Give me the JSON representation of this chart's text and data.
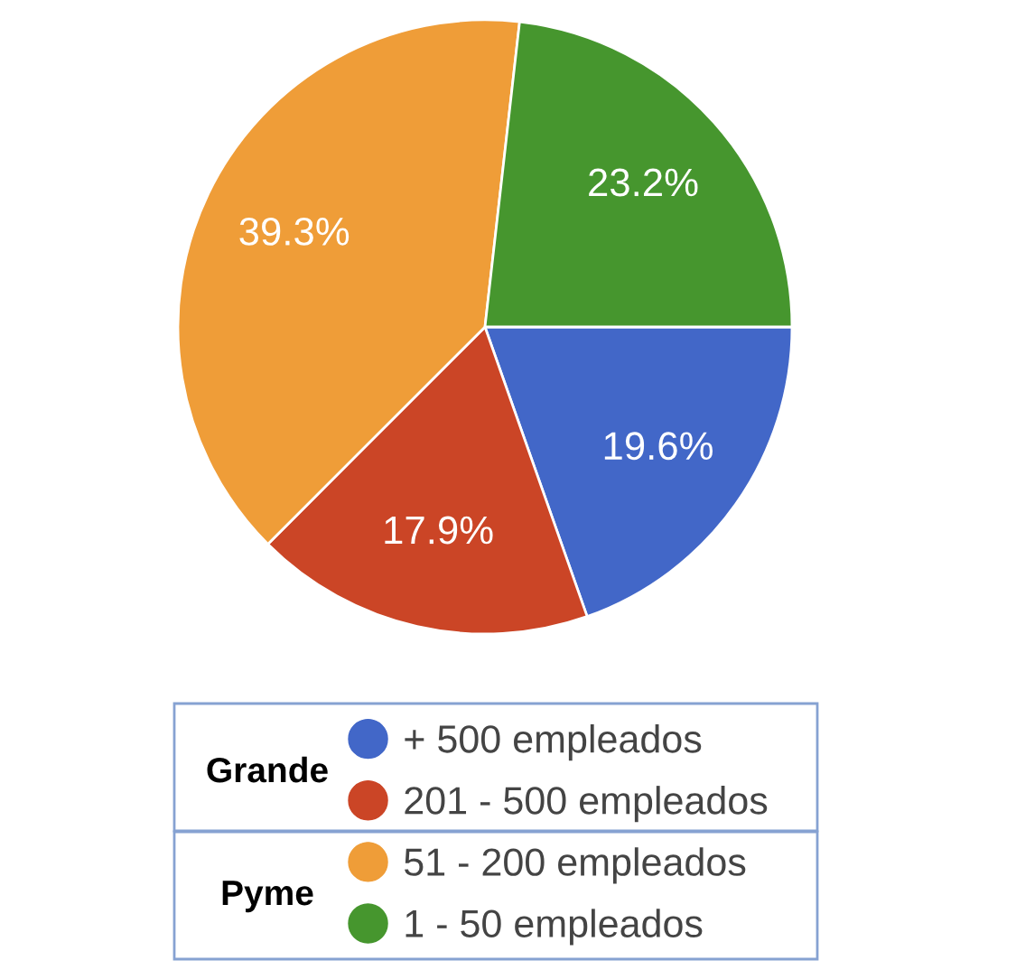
{
  "chart_data": {
    "type": "pie",
    "categories": [
      "+ 500 empleados",
      "201 - 500 empleados",
      "51 - 200 empleados",
      "1 - 50 empleados"
    ],
    "values": [
      19.6,
      17.9,
      39.3,
      23.2
    ],
    "colors": [
      "#4267c8",
      "#cb4526",
      "#ef9d38",
      "#46962e"
    ],
    "value_labels": [
      "19.6%",
      "17.9%",
      "39.3%",
      "23.2%"
    ],
    "legend": "bottom",
    "annotations": [
      "Grande",
      "Pyme"
    ]
  }
}
